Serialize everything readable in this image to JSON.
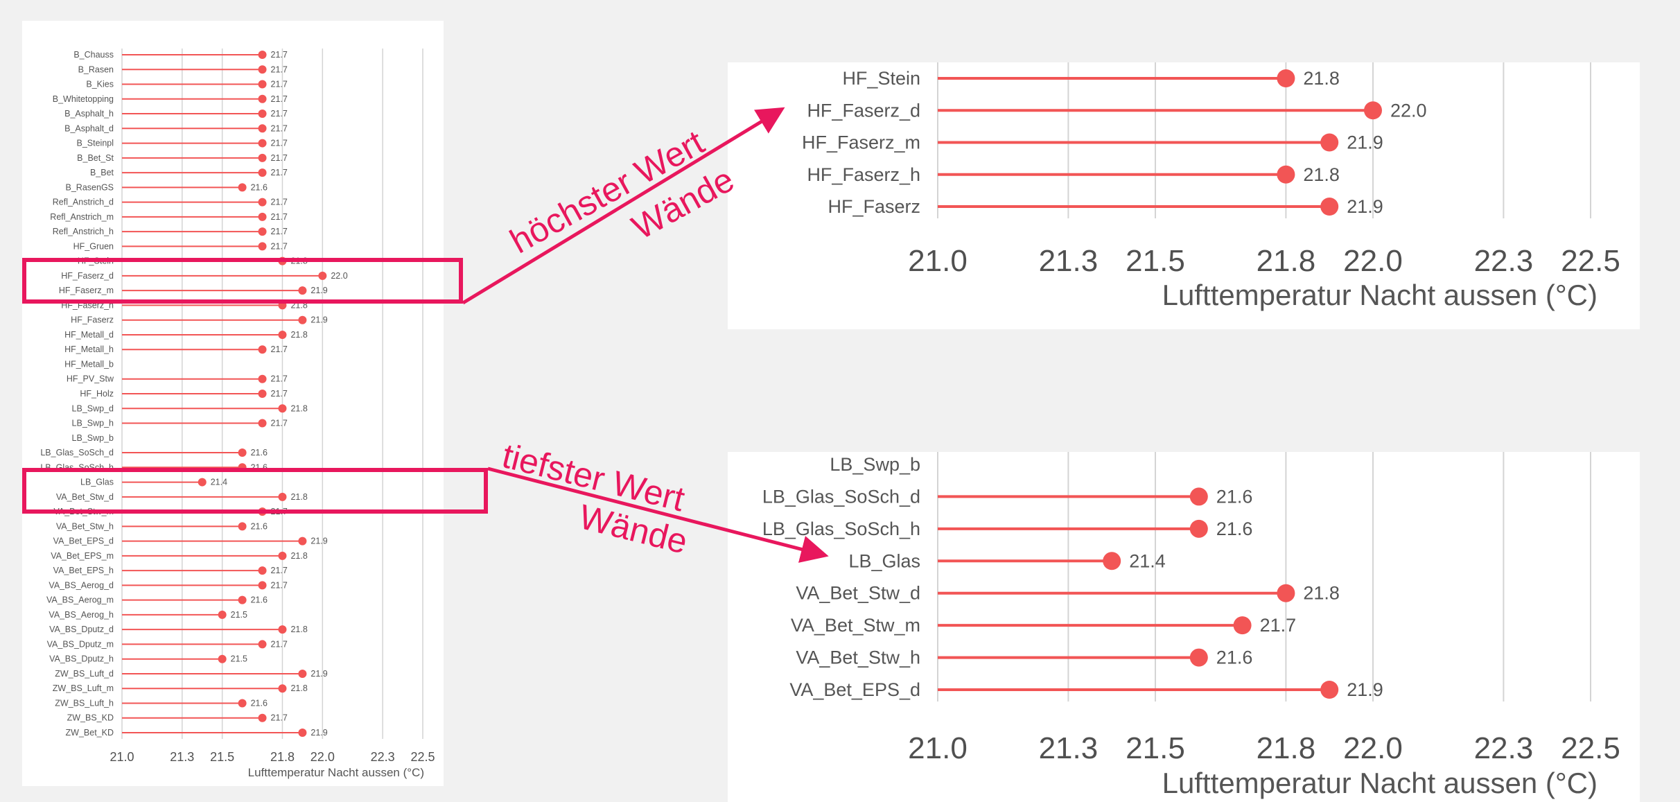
{
  "chart_data": [
    {
      "type": "lollipop",
      "xlabel": "Lufttemperatur Nacht aussen (°C)",
      "xticks": [
        "21.0",
        "21.3",
        "21.5",
        "21.8",
        "22.0",
        "22.3",
        "22.5"
      ],
      "xlim": [
        21.0,
        22.5
      ],
      "grid": true,
      "color": "#f25555",
      "categories": [
        "B_Chauss",
        "B_Rasen",
        "B_Kies",
        "B_Whitetopping",
        "B_Asphalt_h",
        "B_Asphalt_d",
        "B_Steinpl",
        "B_Bet_St",
        "B_Bet",
        "B_RasenGS",
        "Refl_Anstrich_d",
        "Refl_Anstrich_m",
        "Refl_Anstrich_h",
        "HF_Gruen",
        "HF_Stein",
        "HF_Faserz_d",
        "HF_Faserz_m",
        "HF_Faserz_h",
        "HF_Faserz",
        "HF_Metall_d",
        "HF_Metall_h",
        "HF_Metall_b",
        "HF_PV_Stw",
        "HF_Holz",
        "LB_Swp_d",
        "LB_Swp_h",
        "LB_Swp_b",
        "LB_Glas_SoSch_d",
        "LB_Glas_SoSch_h",
        "LB_Glas",
        "VA_Bet_Stw_d",
        "VA_Bet_Stw_m",
        "VA_Bet_Stw_h",
        "VA_Bet_EPS_d",
        "VA_Bet_EPS_m",
        "VA_Bet_EPS_h",
        "VA_BS_Aerog_d",
        "VA_BS_Aerog_m",
        "VA_BS_Aerog_h",
        "VA_BS_Dputz_d",
        "VA_BS_Dputz_m",
        "VA_BS_Dputz_h",
        "ZW_BS_Luft_d",
        "ZW_BS_Luft_m",
        "ZW_BS_Luft_h",
        "ZW_BS_KD",
        "ZW_Bet_KD"
      ],
      "values": [
        21.7,
        21.7,
        21.7,
        21.7,
        21.7,
        21.7,
        21.7,
        21.7,
        21.7,
        21.6,
        21.7,
        21.7,
        21.7,
        21.7,
        21.8,
        22.0,
        21.9,
        21.8,
        21.9,
        21.8,
        21.7,
        null,
        21.7,
        21.7,
        21.8,
        21.7,
        null,
        21.6,
        21.6,
        21.4,
        21.8,
        21.7,
        21.6,
        21.9,
        21.8,
        21.7,
        21.7,
        21.6,
        21.5,
        21.8,
        21.7,
        21.5,
        21.9,
        21.8,
        21.6,
        21.7,
        21.9
      ],
      "labels": [
        "21.7",
        "21.7",
        "21.7",
        "21.7",
        "21.7",
        "21.7",
        "21.7",
        "21.7",
        "21.7",
        "21.6",
        "21.7",
        "21.7",
        "21.7",
        "21.7",
        "21.8",
        "22.0",
        "21.9",
        "21.8",
        "21.9",
        "21.8",
        "21.7",
        "",
        "21.7",
        "21.7",
        "21.8",
        "21.7",
        "",
        "21.6",
        "21.6",
        "21.4",
        "21.8",
        "21.7",
        "21.6",
        "21.9",
        "21.8",
        "21.7",
        "21.7",
        "21.6",
        "21.5",
        "21.8",
        "21.7",
        "21.5",
        "21.9",
        "21.8",
        "21.6",
        "21.7",
        "21.9"
      ]
    },
    {
      "type": "lollipop",
      "xlabel": "Lufttemperatur Nacht aussen (°C)",
      "xticks": [
        "21.0",
        "21.3",
        "21.5",
        "21.8",
        "22.0",
        "22.3",
        "22.5"
      ],
      "xlim": [
        21.0,
        22.5
      ],
      "grid": true,
      "color": "#f25555",
      "categories": [
        "HF_Stein",
        "HF_Faserz_d",
        "HF_Faserz_m",
        "HF_Faserz_h",
        "HF_Faserz"
      ],
      "values": [
        21.8,
        22.0,
        21.9,
        21.8,
        21.9
      ],
      "labels": [
        "21.8",
        "22.0",
        "21.9",
        "21.8",
        "21.9"
      ]
    },
    {
      "type": "lollipop",
      "xlabel": "Lufttemperatur Nacht aussen (°C)",
      "xticks": [
        "21.0",
        "21.3",
        "21.5",
        "21.8",
        "22.0",
        "22.3",
        "22.5"
      ],
      "xlim": [
        21.0,
        22.5
      ],
      "grid": true,
      "color": "#f25555",
      "categories": [
        "LB_Swp_b",
        "LB_Glas_SoSch_d",
        "LB_Glas_SoSch_h",
        "LB_Glas",
        "VA_Bet_Stw_d",
        "VA_Bet_Stw_m",
        "VA_Bet_Stw_h",
        "VA_Bet_EPS_d"
      ],
      "values": [
        null,
        21.6,
        21.6,
        21.4,
        21.8,
        21.7,
        21.6,
        21.9
      ],
      "labels": [
        "",
        "21.6",
        "21.6",
        "21.4",
        "21.8",
        "21.7",
        "21.6",
        "21.9"
      ]
    }
  ],
  "annotations": {
    "high_line1": "höchster Wert",
    "high_line2": "Wände",
    "low_line1": "tiefster Wert",
    "low_line2": "Wände"
  },
  "colors": {
    "highlight": "#e8175d",
    "series": "#f25555"
  }
}
